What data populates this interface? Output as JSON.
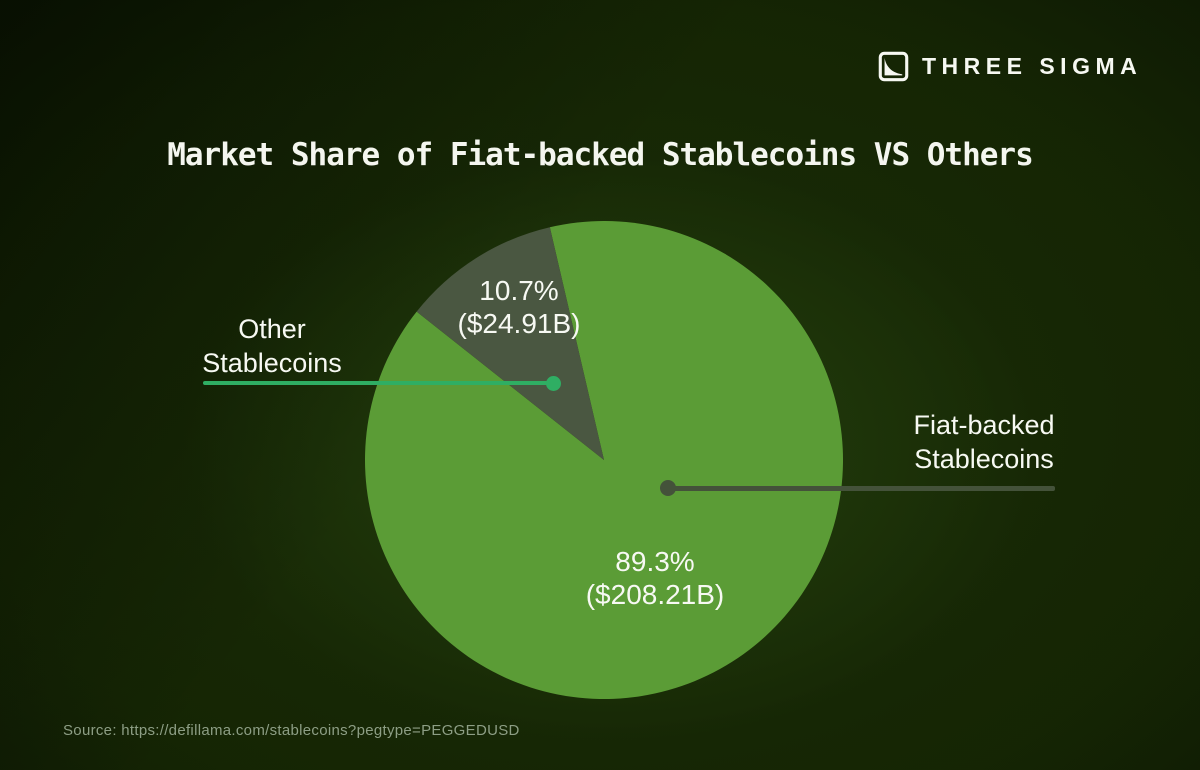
{
  "brand": {
    "name": "THREE SIGMA"
  },
  "title": "Market Share of Fiat-backed Stablecoins VS Others",
  "source": "Source: https://defillama.com/stablecoins?pegtype=PEGGEDUSD",
  "chart_data": {
    "type": "pie",
    "title": "Market Share of Fiat-backed Stablecoins VS Others",
    "legend_position": "callout-labels",
    "slices": [
      {
        "label": "Fiat-backed Stablecoins",
        "percent": 89.3,
        "value_usd_billions": 208.21,
        "display_percent": "89.3%",
        "display_value": "($208.21B)",
        "color": "#5b9c36"
      },
      {
        "label": "Other Stablecoins",
        "percent": 10.7,
        "value_usd_billions": 24.91,
        "display_percent": "10.7%",
        "display_value": "($24.91B)",
        "color": "#4a5741"
      }
    ]
  },
  "callouts": {
    "other": {
      "line1": "Other",
      "line2": "Stablecoins",
      "accent_color": "#2fae63"
    },
    "fiat": {
      "line1": "Fiat-backed",
      "line2": "Stablecoins",
      "accent_color": "#44523a"
    }
  },
  "colors": {
    "label_text": "#f7f9f3",
    "title_text": "#f4f6ef",
    "source_text": "#8d9e85"
  }
}
